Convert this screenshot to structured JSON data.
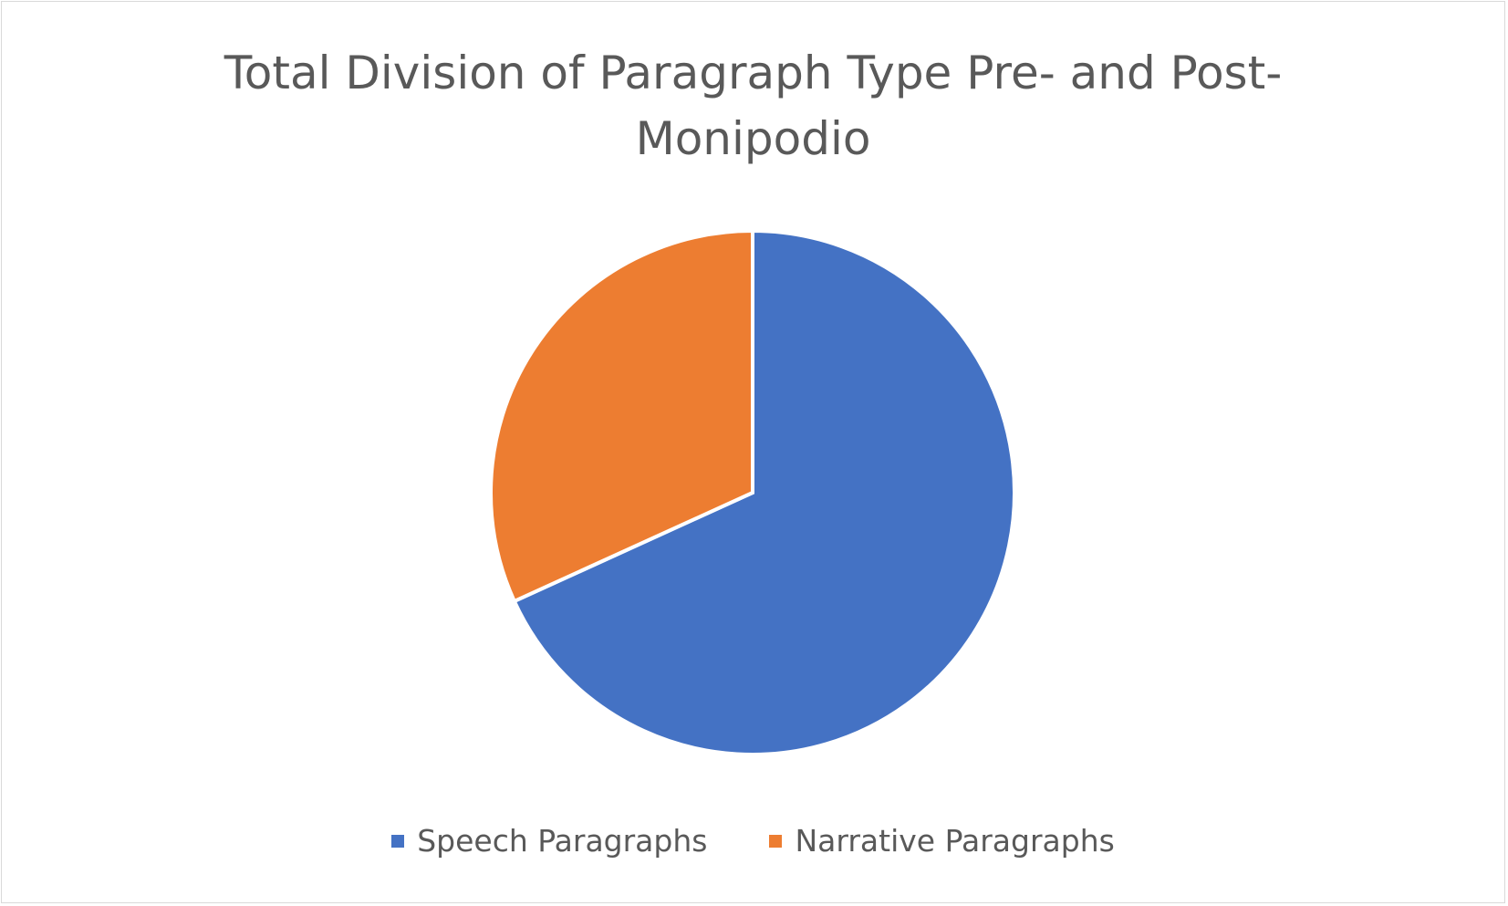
{
  "chart_data": {
    "type": "pie",
    "title_lines": [
      "Total Division of Paragraph Type Pre- and Post-",
      "Monipodio"
    ],
    "series": [
      {
        "name": "Speech Paragraphs",
        "value": 0.682,
        "color": "#4472C4"
      },
      {
        "name": "Narrative Paragraphs",
        "value": 0.318,
        "color": "#ED7D31"
      }
    ],
    "legend_position": "bottom",
    "start_angle": "12 o'clock, clockwise"
  }
}
